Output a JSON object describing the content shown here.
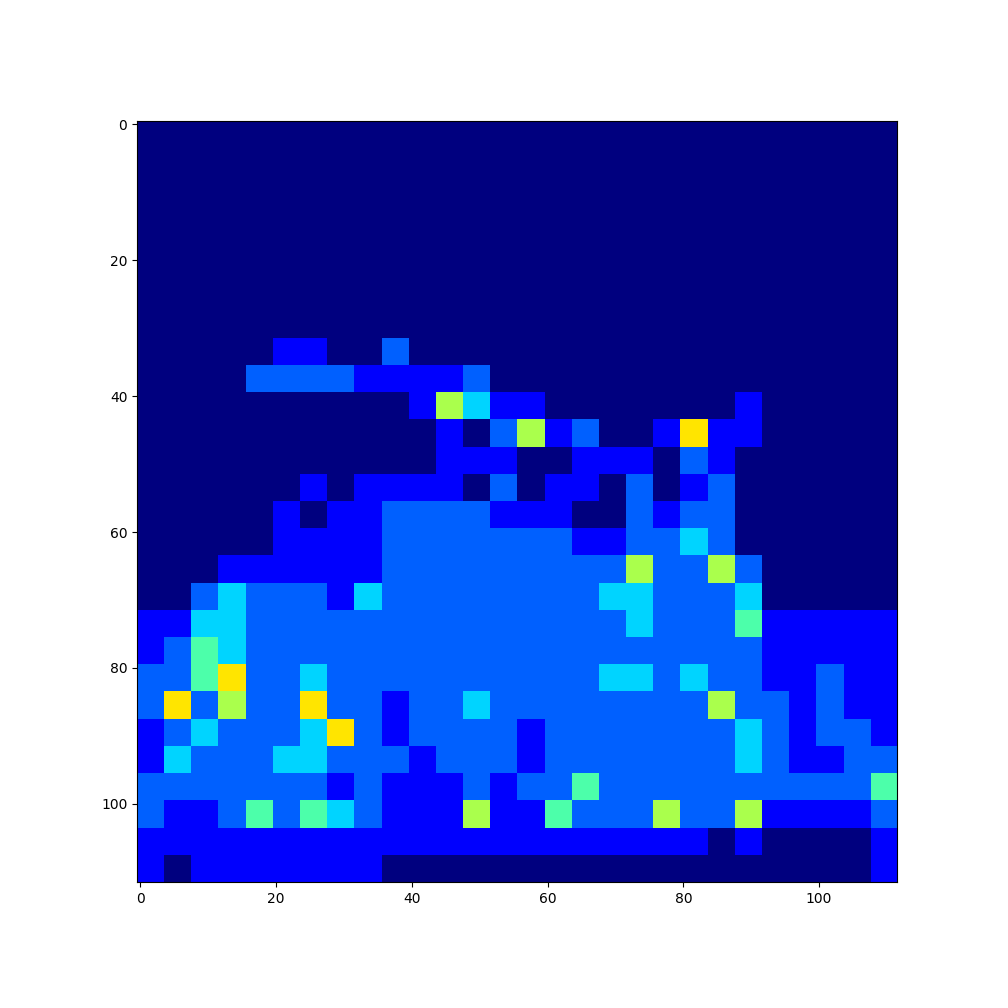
{
  "chart_data": {
    "type": "heatmap",
    "color": "jet",
    "xlim": [
      -0.5,
      111.5
    ],
    "ylim": [
      111.5,
      -0.5
    ],
    "xticks": [
      0,
      20,
      40,
      60,
      80,
      100
    ],
    "yticks": [
      0,
      20,
      40,
      60,
      80,
      100
    ],
    "value_range": [
      0,
      9
    ],
    "cells": [
      [
        0,
        0,
        0,
        0,
        0,
        0,
        0,
        0,
        0,
        0,
        0,
        0,
        0,
        0,
        0,
        0,
        0,
        0,
        0,
        0,
        0,
        0,
        0,
        0,
        0,
        0,
        0,
        0
      ],
      [
        0,
        0,
        0,
        0,
        0,
        0,
        0,
        0,
        0,
        0,
        0,
        0,
        0,
        0,
        0,
        0,
        0,
        0,
        0,
        0,
        0,
        0,
        0,
        0,
        0,
        0,
        0,
        0
      ],
      [
        0,
        0,
        0,
        0,
        0,
        0,
        0,
        0,
        0,
        0,
        0,
        0,
        0,
        0,
        0,
        0,
        0,
        0,
        0,
        0,
        0,
        0,
        0,
        0,
        0,
        0,
        0,
        0
      ],
      [
        0,
        0,
        0,
        0,
        0,
        0,
        0,
        0,
        0,
        0,
        0,
        0,
        0,
        0,
        0,
        0,
        0,
        0,
        0,
        0,
        0,
        0,
        0,
        0,
        0,
        0,
        0,
        0
      ],
      [
        0,
        0,
        0,
        0,
        0,
        0,
        0,
        0,
        0,
        0,
        0,
        0,
        0,
        0,
        0,
        0,
        0,
        0,
        0,
        0,
        0,
        0,
        0,
        0,
        0,
        0,
        0,
        0
      ],
      [
        0,
        0,
        0,
        0,
        0,
        0,
        0,
        0,
        0,
        0,
        0,
        0,
        0,
        0,
        0,
        0,
        0,
        0,
        0,
        0,
        0,
        0,
        0,
        0,
        0,
        0,
        0,
        0
      ],
      [
        0,
        0,
        0,
        0,
        0,
        0,
        0,
        0,
        0,
        0,
        0,
        0,
        0,
        0,
        0,
        0,
        0,
        0,
        0,
        0,
        0,
        0,
        0,
        0,
        0,
        0,
        0,
        0
      ],
      [
        0,
        0,
        0,
        0,
        0,
        0,
        0,
        0,
        0,
        0,
        0,
        0,
        0,
        0,
        0,
        0,
        0,
        0,
        0,
        0,
        0,
        0,
        0,
        0,
        0,
        0,
        0,
        0
      ],
      [
        0,
        0,
        0,
        0,
        0,
        1,
        1,
        0,
        0,
        2,
        0,
        0,
        0,
        0,
        0,
        0,
        0,
        0,
        0,
        0,
        0,
        0,
        0,
        0,
        0,
        0,
        0,
        0
      ],
      [
        0,
        0,
        0,
        0,
        2,
        2,
        2,
        2,
        1,
        1,
        1,
        1,
        2,
        0,
        0,
        0,
        0,
        0,
        0,
        0,
        0,
        0,
        0,
        0,
        0,
        0,
        0,
        0
      ],
      [
        0,
        0,
        0,
        0,
        0,
        0,
        0,
        0,
        0,
        0,
        1,
        5,
        3,
        1,
        1,
        0,
        0,
        0,
        0,
        0,
        0,
        0,
        1,
        0,
        0,
        0,
        0,
        0
      ],
      [
        0,
        0,
        0,
        0,
        0,
        0,
        0,
        0,
        0,
        0,
        0,
        1,
        0,
        2,
        5,
        1,
        2,
        0,
        0,
        1,
        6,
        1,
        1,
        0,
        0,
        0,
        0,
        0
      ],
      [
        0,
        0,
        0,
        0,
        0,
        0,
        0,
        0,
        0,
        0,
        0,
        1,
        1,
        1,
        0,
        0,
        1,
        1,
        1,
        0,
        2,
        1,
        0,
        0,
        0,
        0,
        0,
        0
      ],
      [
        0,
        0,
        0,
        0,
        0,
        0,
        1,
        0,
        1,
        1,
        1,
        1,
        0,
        2,
        0,
        1,
        1,
        0,
        2,
        0,
        1,
        2,
        0,
        0,
        0,
        0,
        0,
        0
      ],
      [
        0,
        0,
        0,
        0,
        0,
        1,
        0,
        1,
        1,
        2,
        2,
        2,
        2,
        1,
        1,
        1,
        0,
        0,
        2,
        1,
        2,
        2,
        0,
        0,
        0,
        0,
        0,
        0
      ],
      [
        0,
        0,
        0,
        0,
        0,
        1,
        1,
        1,
        1,
        2,
        2,
        2,
        2,
        2,
        2,
        2,
        1,
        1,
        2,
        2,
        3,
        2,
        0,
        0,
        0,
        0,
        0,
        0
      ],
      [
        0,
        0,
        0,
        1,
        1,
        1,
        1,
        1,
        1,
        2,
        2,
        2,
        2,
        2,
        2,
        2,
        2,
        2,
        5,
        2,
        2,
        5,
        2,
        0,
        0,
        0,
        0,
        0
      ],
      [
        0,
        0,
        2,
        3,
        2,
        2,
        2,
        1,
        3,
        2,
        2,
        2,
        2,
        2,
        2,
        2,
        2,
        3,
        3,
        2,
        2,
        2,
        3,
        0,
        0,
        0,
        0,
        0
      ],
      [
        1,
        1,
        3,
        3,
        2,
        2,
        2,
        2,
        2,
        2,
        2,
        2,
        2,
        2,
        2,
        2,
        2,
        2,
        3,
        2,
        2,
        2,
        4,
        1,
        1,
        1,
        1,
        1
      ],
      [
        1,
        2,
        4,
        3,
        2,
        2,
        2,
        2,
        2,
        2,
        2,
        2,
        2,
        2,
        2,
        2,
        2,
        2,
        2,
        2,
        2,
        2,
        2,
        1,
        1,
        1,
        1,
        1
      ],
      [
        2,
        2,
        4,
        6,
        2,
        2,
        3,
        2,
        2,
        2,
        2,
        2,
        2,
        2,
        2,
        2,
        2,
        3,
        3,
        2,
        3,
        2,
        2,
        1,
        1,
        2,
        1,
        1
      ],
      [
        2,
        6,
        2,
        5,
        2,
        2,
        6,
        2,
        2,
        1,
        2,
        2,
        3,
        2,
        2,
        2,
        2,
        2,
        2,
        2,
        2,
        5,
        2,
        2,
        1,
        2,
        1,
        1
      ],
      [
        1,
        2,
        3,
        2,
        2,
        2,
        3,
        6,
        2,
        1,
        2,
        2,
        2,
        2,
        1,
        2,
        2,
        2,
        2,
        2,
        2,
        2,
        3,
        2,
        1,
        2,
        2,
        1
      ],
      [
        1,
        3,
        2,
        2,
        2,
        3,
        3,
        2,
        2,
        2,
        1,
        2,
        2,
        2,
        1,
        2,
        2,
        2,
        2,
        2,
        2,
        2,
        3,
        2,
        1,
        1,
        2,
        2
      ],
      [
        2,
        2,
        2,
        2,
        2,
        2,
        2,
        1,
        2,
        1,
        1,
        1,
        2,
        1,
        2,
        2,
        4,
        2,
        2,
        2,
        2,
        2,
        2,
        2,
        2,
        2,
        2,
        4
      ],
      [
        2,
        1,
        1,
        2,
        4,
        2,
        4,
        3,
        2,
        1,
        1,
        1,
        5,
        1,
        1,
        4,
        2,
        2,
        2,
        5,
        2,
        2,
        5,
        1,
        1,
        1,
        1,
        2
      ],
      [
        1,
        1,
        1,
        1,
        1,
        1,
        1,
        1,
        1,
        1,
        1,
        1,
        1,
        1,
        1,
        1,
        1,
        1,
        1,
        1,
        1,
        0,
        1,
        0,
        0,
        0,
        0,
        1
      ],
      [
        1,
        0,
        1,
        1,
        1,
        1,
        1,
        1,
        1,
        0,
        0,
        0,
        0,
        0,
        0,
        0,
        0,
        0,
        0,
        0,
        0,
        0,
        0,
        0,
        0,
        0,
        0,
        1
      ]
    ]
  }
}
